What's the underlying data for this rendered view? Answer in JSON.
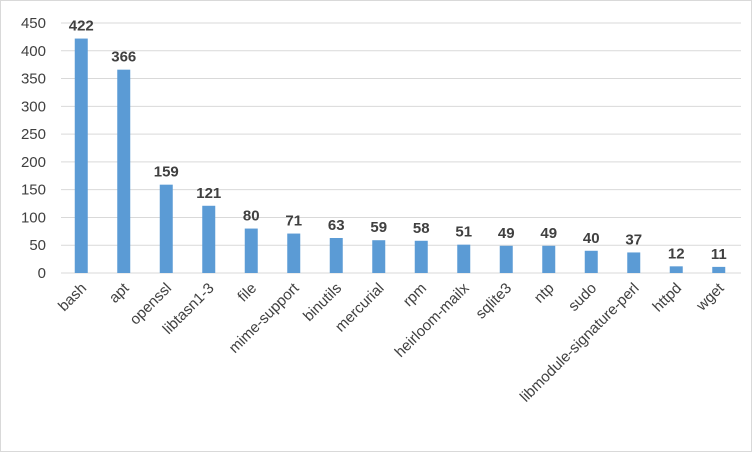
{
  "chart_data": {
    "type": "bar",
    "categories": [
      "bash",
      "apt",
      "openssl",
      "libtasn1-3",
      "file",
      "mime-support",
      "binutils",
      "mercurial",
      "rpm",
      "heirloom-mailx",
      "sqlite3",
      "ntp",
      "sudo",
      "libmodule-signature-perl",
      "httpd",
      "wget"
    ],
    "values": [
      422,
      366,
      159,
      121,
      80,
      71,
      63,
      59,
      58,
      51,
      49,
      49,
      40,
      37,
      12,
      11
    ],
    "ylim": [
      0,
      450
    ],
    "yticks": [
      0,
      50,
      100,
      150,
      200,
      250,
      300,
      350,
      400,
      450
    ],
    "grid": true,
    "legend": "none",
    "bar_color": "#5b9bd5",
    "data_labels": true
  }
}
